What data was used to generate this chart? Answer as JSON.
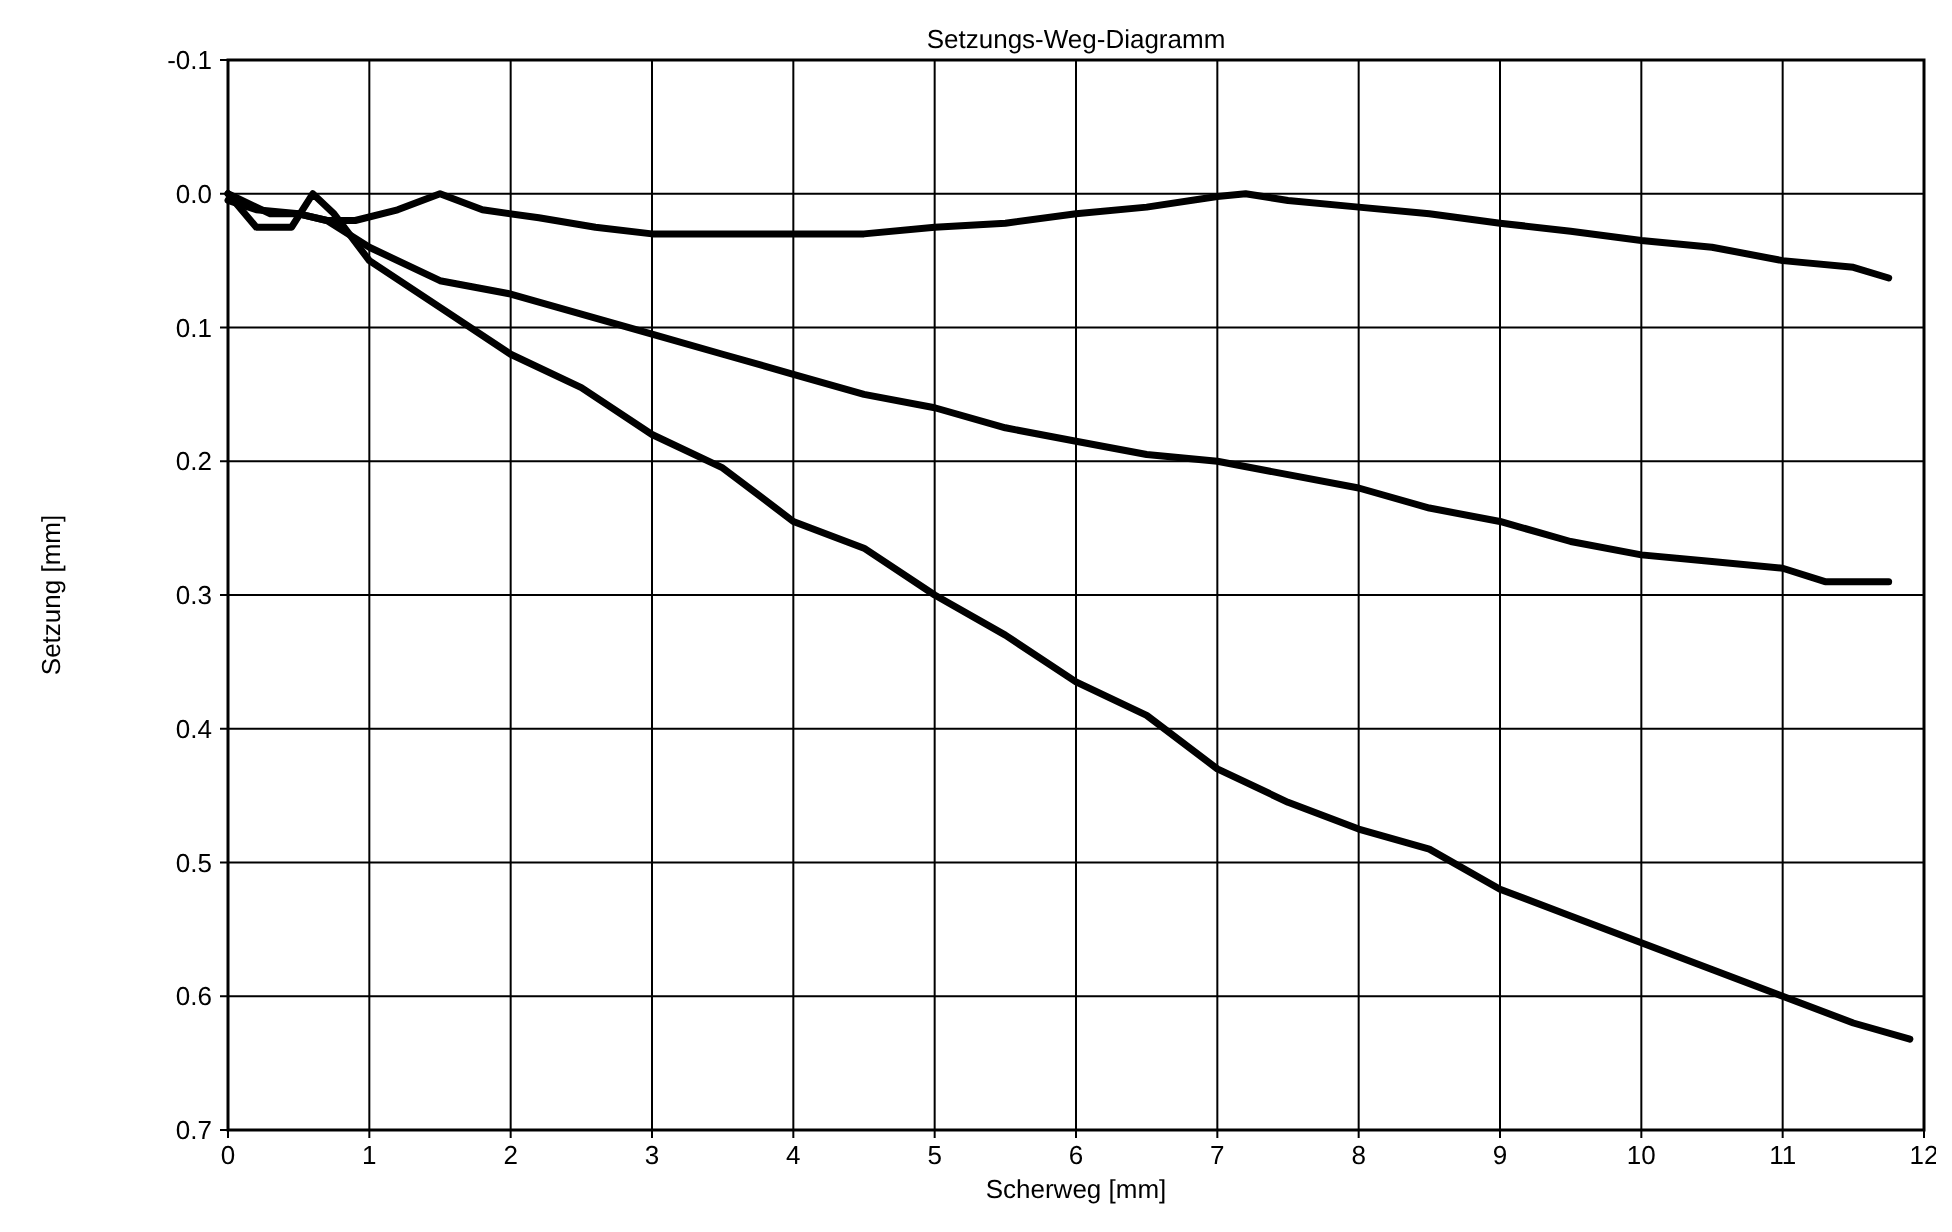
{
  "chart_data": {
    "type": "line",
    "title": "Setzungs-Weg-Diagramm",
    "xlabel": "Scherweg [mm]",
    "ylabel": "Setzung [mm]",
    "xlim": [
      0,
      12
    ],
    "xticks": [
      0,
      1,
      2,
      3,
      4,
      5,
      6,
      7,
      8,
      9,
      10,
      11,
      12
    ],
    "ylim": [
      0.7,
      -0.1
    ],
    "yticks": [
      -0.1,
      {
        "value": 0,
        "label": "0.0"
      },
      0.1,
      0.2,
      0.3,
      0.4,
      0.5,
      0.6,
      0.7
    ],
    "grid": true,
    "marker": "none",
    "line_style": "solid",
    "series": [
      {
        "color": "#000000",
        "x": [
          0,
          0.2,
          0.5,
          0.7,
          0.9,
          1.2,
          1.5,
          1.8,
          2.2,
          2.6,
          3,
          3.5,
          4,
          4.5,
          5,
          5.5,
          6,
          6.5,
          7,
          7.2,
          7.5,
          8,
          8.5,
          9,
          9.5,
          10,
          10.5,
          11,
          11.5,
          11.75
        ],
        "values": [
          0.005,
          0.012,
          0.015,
          0.02,
          0.02,
          0.012,
          0,
          0.012,
          0.018,
          0.025,
          0.03,
          0.03,
          0.03,
          0.03,
          0.025,
          0.022,
          0.015,
          0.01,
          0.002,
          0,
          0.005,
          0.01,
          0.015,
          0.022,
          0.028,
          0.035,
          0.04,
          0.05,
          0.055,
          0.063
        ]
      },
      {
        "color": "#000000",
        "x": [
          0,
          0.3,
          0.5,
          0.7,
          1,
          1.5,
          2,
          2.5,
          3,
          3.5,
          4,
          4.5,
          5,
          5.5,
          6,
          6.5,
          7,
          7.5,
          8,
          8.5,
          9,
          9.5,
          10,
          10.5,
          11,
          11.3,
          11.75
        ],
        "values": [
          0,
          0.015,
          0.015,
          0.02,
          0.04,
          0.065,
          0.075,
          0.09,
          0.105,
          0.12,
          0.135,
          0.15,
          0.16,
          0.175,
          0.185,
          0.195,
          0.2,
          0.21,
          0.22,
          0.235,
          0.245,
          0.26,
          0.27,
          0.275,
          0.28,
          0.29,
          0.29
        ]
      },
      {
        "color": "#000000",
        "x": [
          0,
          0.2,
          0.45,
          0.6,
          0.75,
          1,
          1.5,
          2,
          2.5,
          3,
          3.5,
          4,
          4.5,
          5,
          5.5,
          6,
          6.5,
          7,
          7.5,
          8,
          8.5,
          9,
          9.5,
          10,
          10.5,
          11,
          11.5,
          11.9
        ],
        "values": [
          0,
          0.025,
          0.025,
          0,
          0.015,
          0.05,
          0.085,
          0.12,
          0.145,
          0.18,
          0.205,
          0.245,
          0.265,
          0.3,
          0.33,
          0.365,
          0.39,
          0.43,
          0.455,
          0.475,
          0.49,
          0.52,
          0.54,
          0.56,
          0.58,
          0.6,
          0.62,
          0.632
        ]
      }
    ]
  }
}
